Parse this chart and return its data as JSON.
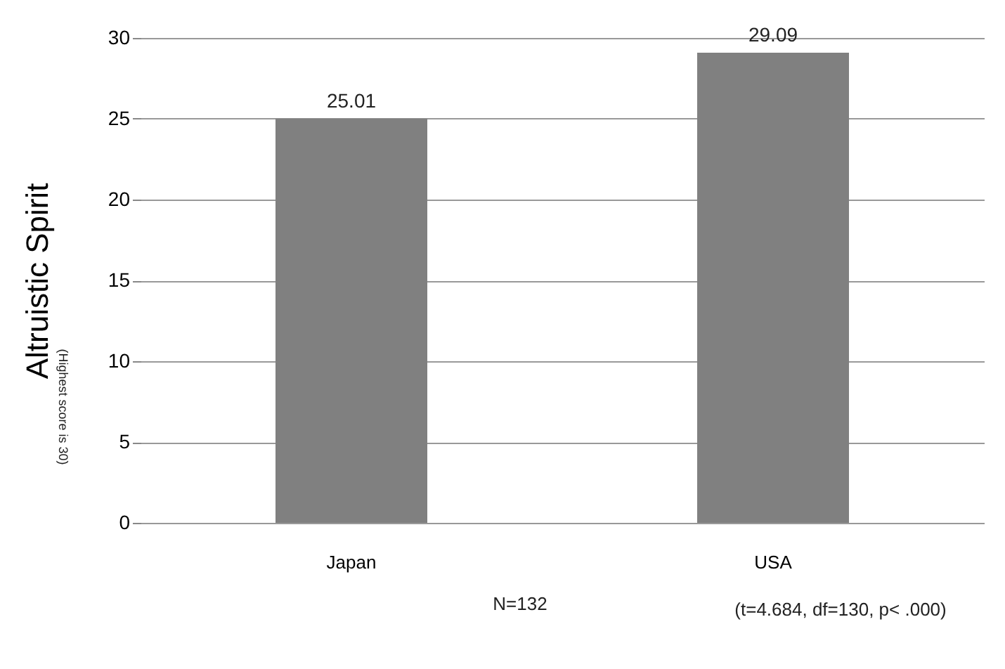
{
  "chart_data": {
    "type": "bar",
    "ylabel": "Altruistic Spirit",
    "categories": [
      "Japan",
      "USA"
    ],
    "values": [
      25.01,
      29.09
    ],
    "color": "#808080",
    "ylim": [
      0,
      30
    ],
    "yticks": [
      0,
      5,
      10,
      15,
      20,
      25,
      30
    ],
    "grid": "y",
    "data_labels": true,
    "annotations": [
      "(Highest score is 30)",
      "N=132",
      "(t=4.684, df=130, p< .000)"
    ]
  }
}
